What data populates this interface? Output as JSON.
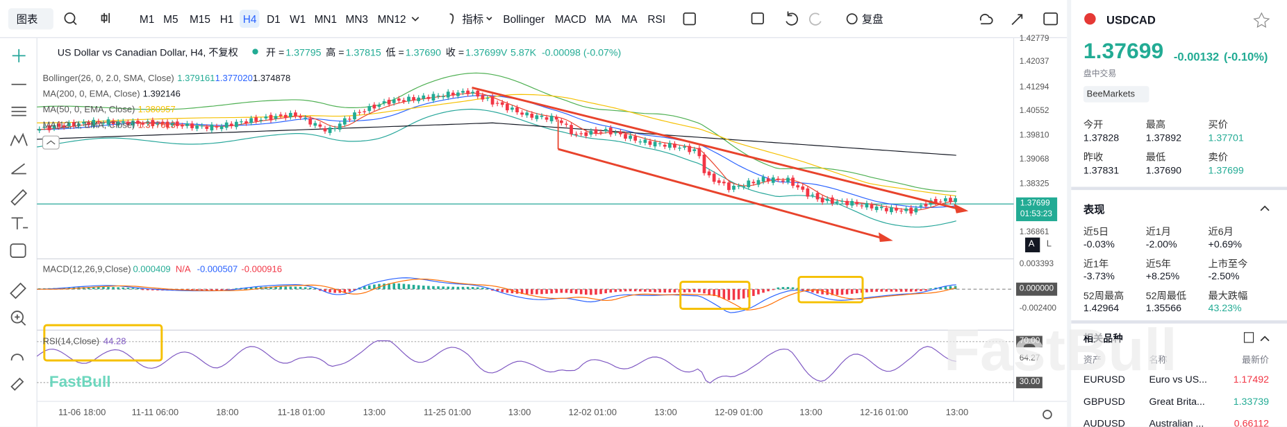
{
  "toolbar": {
    "chart_menu": "图表",
    "timeframes": [
      "M1",
      "M5",
      "M15",
      "H1",
      "H4",
      "D1",
      "W1",
      "MN1",
      "MN3",
      "MN12"
    ],
    "indicator_menu": "指标",
    "indicators": [
      "Bollinger",
      "MACD",
      "MA",
      "MA",
      "RSI"
    ],
    "replay": "复盘"
  },
  "chart": {
    "title": "US Dollar vs Canadian Dollar, H4, 不复权",
    "ohlc": [
      {
        "label": "开 =",
        "value": "1.37795"
      },
      {
        "label": "高 =",
        "value": "1.37815"
      },
      {
        "label": "低 =",
        "value": "1.37690"
      },
      {
        "label": "收 =",
        "value": "1.37699"
      }
    ],
    "volume_label": "V",
    "volume": "5.87K",
    "change": "-0.00098 (-0.07%)",
    "overlays": [
      {
        "name": "Bollinger(26, 0, 2.0, SMA, Close)",
        "values": [
          "1.379161",
          "1.377020",
          "1.374878"
        ]
      },
      {
        "name": "MA(200, 0, EMA, Close)",
        "values": [
          "1.392146"
        ]
      },
      {
        "name": "MA(50, 0, EMA, Close)",
        "values": [
          "1.380957"
        ]
      },
      {
        "name": "MA(12, 0, EMA, Close)",
        "values": [
          "1.377613"
        ]
      }
    ],
    "price_axis": [
      "1.42779",
      "1.42037",
      "1.41294",
      "1.40552",
      "1.39810",
      "1.39068",
      "1.38325",
      "1.36861"
    ],
    "current_price": "1.37699",
    "countdown": "01:53:23",
    "macd": {
      "name": "MACD(12,26,9,Close)",
      "values": [
        "0.000409",
        "N/A",
        "-0.000507",
        "-0.000916"
      ],
      "axis": [
        "0.003393",
        "0.000000",
        "-0.002400"
      ]
    },
    "rsi": {
      "name": "RSI(14,Close)",
      "value": "44.28",
      "axis": [
        "70.00",
        "64.27",
        "30.00"
      ]
    },
    "time_axis": [
      "11-06 18:00",
      "11-11 06:00",
      "18:00",
      "11-18 01:00",
      "13:00",
      "11-25 01:00",
      "13:00",
      "12-02 01:00",
      "13:00",
      "12-09 01:00",
      "13:00",
      "12-16 01:00",
      "13:00"
    ],
    "watermark": "FastBull"
  },
  "quote_panel": {
    "symbol": "USDCAD",
    "price": "1.37699",
    "change": "-0.00132",
    "change_pct": "(-0.10%)",
    "status": "盘中交易",
    "broker": "BeeMarkets",
    "stats": [
      {
        "label": "今开",
        "value": "1.37828"
      },
      {
        "label": "最高",
        "value": "1.37892"
      },
      {
        "label": "买价",
        "value": "1.37701"
      },
      {
        "label": "昨收",
        "value": "1.37831"
      },
      {
        "label": "最低",
        "value": "1.37690"
      },
      {
        "label": "卖价",
        "value": "1.37699"
      }
    ],
    "performance_title": "表现",
    "performance": [
      {
        "label": "近5日",
        "value": "-0.03%"
      },
      {
        "label": "近1月",
        "value": "-2.00%"
      },
      {
        "label": "近6月",
        "value": "+0.69%"
      },
      {
        "label": "近1年",
        "value": "-3.73%"
      },
      {
        "label": "近5年",
        "value": "+8.25%"
      },
      {
        "label": "上市至今",
        "value": "-2.50%"
      },
      {
        "label": "52周最高",
        "value": "1.42964"
      },
      {
        "label": "52周最低",
        "value": "1.35566"
      },
      {
        "label": "最大跌幅",
        "value": "43.23%"
      }
    ],
    "related_title": "相关品种",
    "related_headers": [
      "资产",
      "名称",
      "最新价"
    ],
    "related": [
      [
        "EURUSD",
        "Euro vs US...",
        "1.17492"
      ],
      [
        "GBPUSD",
        "Great Brita...",
        "1.33739"
      ],
      [
        "AUDUSD",
        "Australian ...",
        "0.66112"
      ]
    ]
  }
}
